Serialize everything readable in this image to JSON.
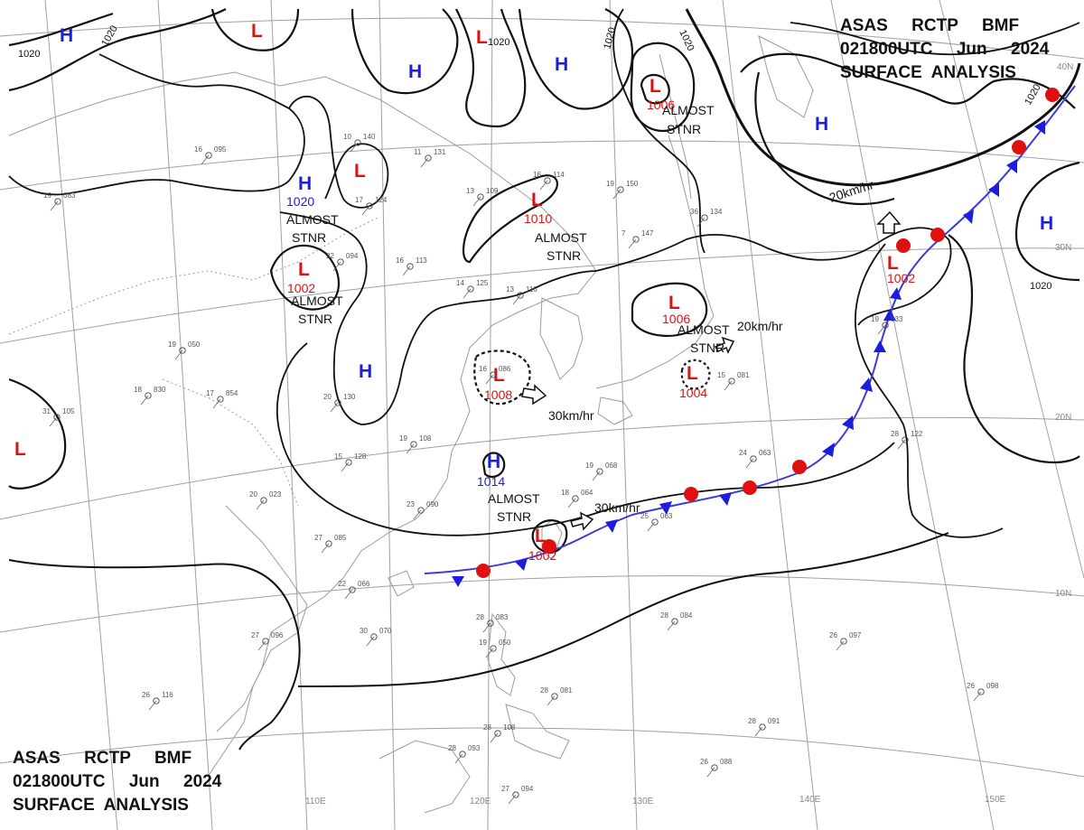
{
  "header_top": {
    "line1": "ASAS     RCTP     BMF",
    "line2": "021800UTC     Jun     2024",
    "line3": "SURFACE  ANALYSIS"
  },
  "header_bottom": {
    "line1": "ASAS     RCTP     BMF",
    "line2": "021800UTC     Jun     2024",
    "line3": "SURFACE  ANALYSIS"
  },
  "grid_labels": {
    "lon": [
      "110E",
      "120E",
      "130E",
      "140E",
      "150E"
    ],
    "lat": [
      "40N",
      "30N",
      "20N",
      "10N"
    ]
  },
  "isobar_labels": {
    "a": "1020",
    "b": "1020",
    "c": "1020",
    "d": "1020",
    "e": "1020",
    "f": "1020",
    "g": "1020"
  },
  "centers": [
    {
      "type": "H",
      "pressure": ""
    },
    {
      "type": "L",
      "pressure": ""
    },
    {
      "type": "H",
      "pressure": ""
    },
    {
      "type": "L",
      "pressure": ""
    },
    {
      "type": "H",
      "pressure": ""
    },
    {
      "type": "L",
      "pressure": "1006"
    },
    {
      "type": "H",
      "pressure": ""
    },
    {
      "type": "H",
      "pressure": "1020"
    },
    {
      "type": "L",
      "pressure": ""
    },
    {
      "type": "L",
      "pressure": "1010"
    },
    {
      "type": "L",
      "pressure": "1002"
    },
    {
      "type": "H",
      "pressure": ""
    },
    {
      "type": "L",
      "pressure": ""
    },
    {
      "type": "L",
      "pressure": "1008"
    },
    {
      "type": "H",
      "pressure": "1014"
    },
    {
      "type": "L",
      "pressure": "1006"
    },
    {
      "type": "L",
      "pressure": "1004"
    },
    {
      "type": "L",
      "pressure": "1002"
    },
    {
      "type": "L",
      "pressure": "1002"
    },
    {
      "type": "H",
      "pressure": ""
    }
  ],
  "notes": {
    "stnr1a": "ALMOST",
    "stnr1b": "STNR",
    "stnr2a": "ALMOST",
    "stnr2b": "STNR",
    "stnr3a": "ALMOST",
    "stnr3b": "STNR",
    "stnr4a": "ALMOST",
    "stnr4b": "STNR",
    "stnr5a": "ALMOST",
    "stnr5b": "STNR",
    "stnr6a": "ALMOST",
    "stnr6b": "STNR",
    "speed1": "30km/hr",
    "speed2": "30km/hr",
    "speed3": "20km/hr",
    "speed4": "20km/hr"
  },
  "stations": [
    {
      "id": "s1",
      "t": "16",
      "p": "095"
    },
    {
      "id": "s2",
      "t": "19",
      "p": "083"
    },
    {
      "id": "s3",
      "t": "10",
      "p": "140"
    },
    {
      "id": "s4",
      "t": "17",
      "p": "124"
    },
    {
      "id": "s5",
      "t": "11",
      "p": "131"
    },
    {
      "id": "s6",
      "t": "13",
      "p": "109"
    },
    {
      "id": "s7",
      "t": "16",
      "p": "114"
    },
    {
      "id": "s8",
      "t": "7",
      "p": "147"
    },
    {
      "id": "s9",
      "t": "22",
      "p": "094"
    },
    {
      "id": "s10",
      "t": "16",
      "p": "113"
    },
    {
      "id": "s11",
      "t": "14",
      "p": "125"
    },
    {
      "id": "s12",
      "t": "13",
      "p": "116"
    },
    {
      "id": "s13",
      "t": "18",
      "p": "830"
    },
    {
      "id": "s14",
      "t": "17",
      "p": "854"
    },
    {
      "id": "s15",
      "t": "20",
      "p": "130"
    },
    {
      "id": "s16",
      "t": "19",
      "p": "108"
    },
    {
      "id": "s17",
      "t": "15",
      "p": "128"
    },
    {
      "id": "s18",
      "t": "20",
      "p": "023"
    },
    {
      "id": "s19",
      "t": "23",
      "p": "090"
    },
    {
      "id": "s20",
      "t": "27",
      "p": "096"
    },
    {
      "id": "s21",
      "t": "30",
      "p": "070"
    },
    {
      "id": "s22",
      "t": "22",
      "p": "066"
    },
    {
      "id": "s23",
      "t": "27",
      "p": "085"
    },
    {
      "id": "s24",
      "t": "24",
      "p": "063"
    },
    {
      "id": "s25",
      "t": "25",
      "p": "063"
    },
    {
      "id": "s26",
      "t": "19",
      "p": "068"
    },
    {
      "id": "s27",
      "t": "28",
      "p": "084"
    },
    {
      "id": "s28",
      "t": "26",
      "p": "097"
    },
    {
      "id": "s29",
      "t": "26",
      "p": "098"
    },
    {
      "id": "s30",
      "t": "28",
      "p": "091"
    },
    {
      "id": "s31",
      "t": "26",
      "p": "088"
    },
    {
      "id": "s32",
      "t": "28",
      "p": "093"
    },
    {
      "id": "s33",
      "t": "28",
      "p": "108"
    },
    {
      "id": "s34",
      "t": "27",
      "p": "094"
    },
    {
      "id": "s35",
      "t": "26",
      "p": "116"
    },
    {
      "id": "s36",
      "t": "31",
      "p": "105"
    },
    {
      "id": "s37",
      "t": "19",
      "p": "050"
    },
    {
      "id": "s38",
      "t": "28",
      "p": "122"
    },
    {
      "id": "s39",
      "t": "19",
      "p": "033"
    },
    {
      "id": "s40",
      "t": "19",
      "p": "150"
    },
    {
      "id": "s41",
      "t": "36",
      "p": "134"
    },
    {
      "id": "s42",
      "t": "15",
      "p": "081"
    },
    {
      "id": "s43",
      "t": "16",
      "p": "086"
    },
    {
      "id": "s44",
      "t": "28",
      "p": "083"
    },
    {
      "id": "s45",
      "t": "19",
      "p": "050"
    },
    {
      "id": "s46",
      "t": "18",
      "p": "064"
    },
    {
      "id": "s47",
      "t": "28",
      "p": "081"
    }
  ],
  "colors": {
    "high": "#1d1ddf",
    "low": "#e01010",
    "isobar": "#111111",
    "grid": "#9a9a9a",
    "coast": "#9a9a9a"
  }
}
